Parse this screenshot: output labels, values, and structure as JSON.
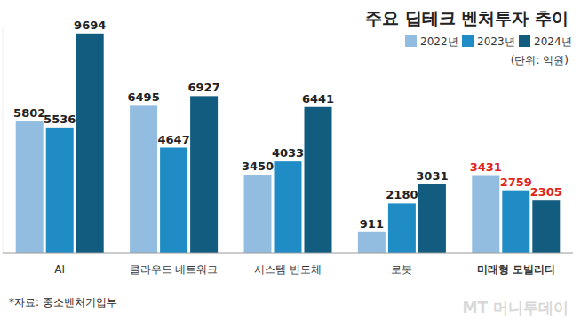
{
  "chart_data": {
    "type": "bar",
    "title": "주요 딥테크 벤처투자 추이",
    "unit": "(단위: 억원)",
    "source": "*자료: 중소벤처기업부",
    "watermark": "MT 머니투데이",
    "categories": [
      "AI",
      "클라우드 네트워크",
      "시스템 반도체",
      "로봇",
      "미래형 모빌리티"
    ],
    "series": [
      {
        "name": "2022년",
        "color": "#93bde0",
        "values": [
          5802,
          6495,
          3450,
          911,
          3431
        ]
      },
      {
        "name": "2023년",
        "color": "#1f8cc6",
        "values": [
          5536,
          4647,
          4033,
          2180,
          2759
        ]
      },
      {
        "name": "2024년",
        "color": "#125c80",
        "values": [
          9694,
          6927,
          6441,
          3031,
          2305
        ]
      }
    ],
    "ylim": [
      0,
      10000
    ],
    "yticks": [],
    "grid": false,
    "legend": "upper right",
    "data_labels": true,
    "tick_labels": "x"
  }
}
